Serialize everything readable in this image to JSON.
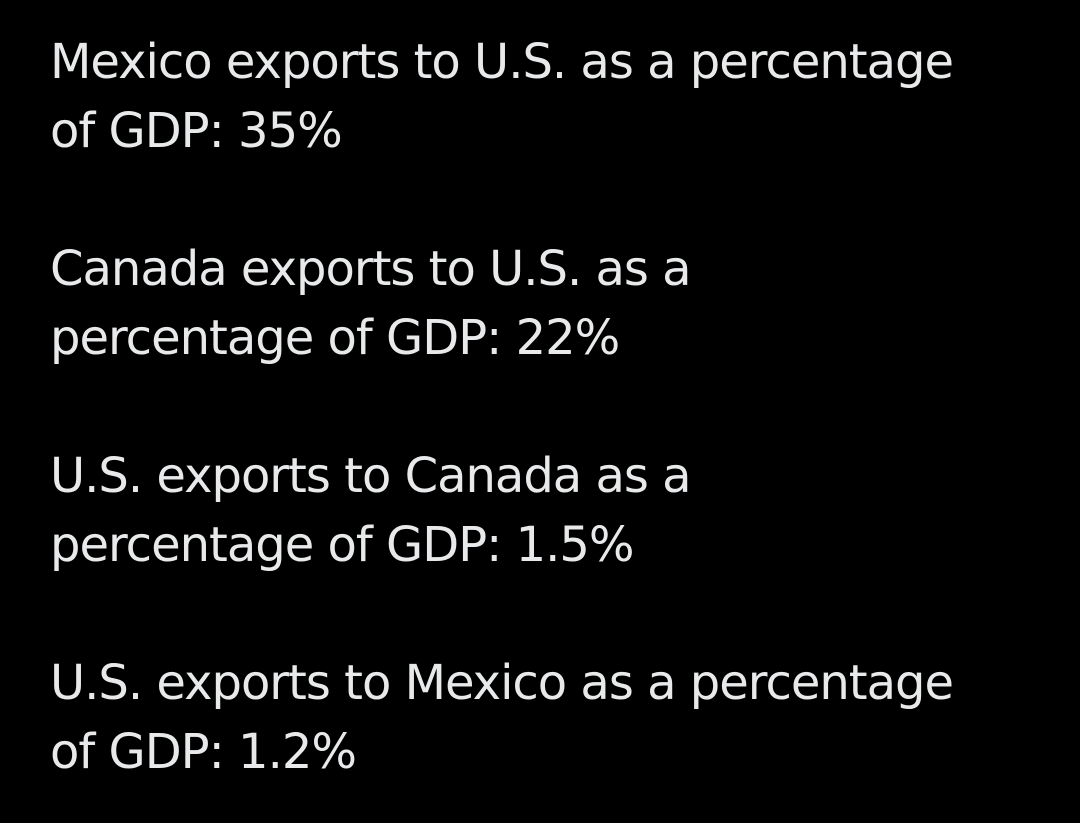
{
  "post": {
    "paragraphs": [
      {
        "lines": [
          "Mexico exports to U.S. as a percentage",
          "of GDP: 35%"
        ]
      },
      {
        "lines": [
          "Canada exports to U.S. as a",
          "percentage of GDP: 22%"
        ]
      },
      {
        "lines": [
          "U.S. exports to Canada as a",
          "percentage of GDP: 1.5%"
        ]
      },
      {
        "lines": [
          "U.S. exports to Mexico as a percentage",
          "of GDP: 1.2%"
        ]
      }
    ]
  },
  "colors": {
    "background": "#000000",
    "text": "#e7e9ea"
  }
}
